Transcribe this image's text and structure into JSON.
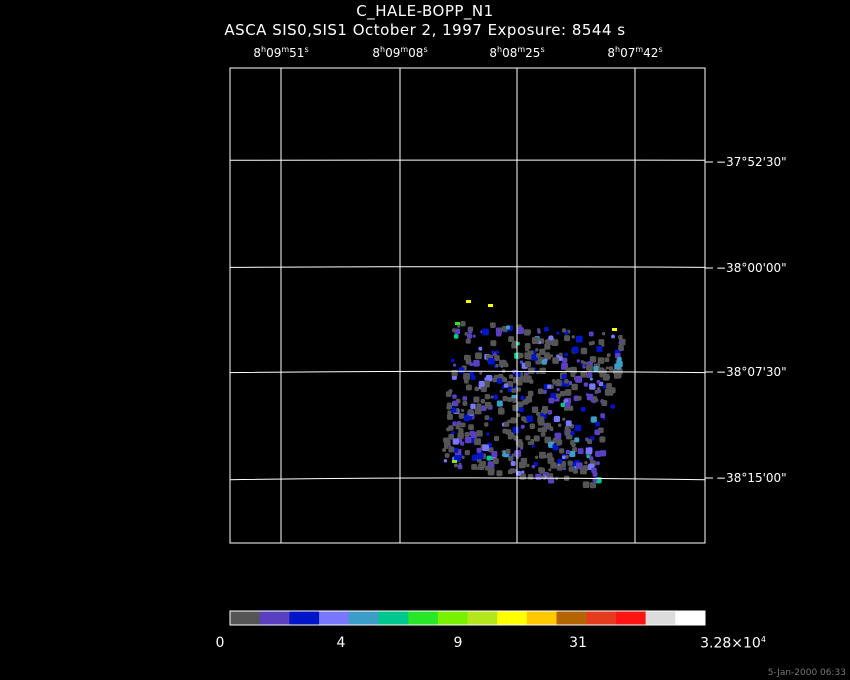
{
  "title": "C_HALE-BOPP_N1",
  "subtitle": "ASCA SIS0,SIS1 October 2, 1997 Exposure: 8544 s",
  "timestamp": "5-Jan-2000 06:33",
  "chart_data": {
    "type": "heatmap",
    "title": "C_HALE-BOPP_N1",
    "subtitle": "ASCA SIS0,SIS1 October 2, 1997 Exposure: 8544 s",
    "x_axis": {
      "kind": "right ascension",
      "ticks": [
        {
          "h": "8",
          "m": "09",
          "s": "51"
        },
        {
          "h": "8",
          "m": "09",
          "s": "08"
        },
        {
          "h": "8",
          "m": "08",
          "s": "25"
        },
        {
          "h": "8",
          "m": "07",
          "s": "42"
        }
      ]
    },
    "y_axis": {
      "kind": "declination",
      "ticks": [
        "−37°52'30\"",
        "−38°00'00\"",
        "−38°07'30\"",
        "−38°15'00\""
      ]
    },
    "grid": true,
    "colorbar": {
      "colors": [
        "#555555",
        "#5a3fc0",
        "#0014c8",
        "#7878ff",
        "#3c9ec8",
        "#00c88c",
        "#28e628",
        "#78f000",
        "#b4e61e",
        "#ffff00",
        "#ffc800",
        "#b46400",
        "#e63c1e",
        "#ff1414",
        "#dcdcdc",
        "#ffffff"
      ],
      "tick_values": [
        "0",
        "4",
        "9",
        "31"
      ],
      "max_label": "3.28×10",
      "max_exp": "4"
    },
    "sources": [
      {
        "ra": "8h08m25s",
        "dec": "-38°07'30\"",
        "level": 3
      }
    ]
  }
}
